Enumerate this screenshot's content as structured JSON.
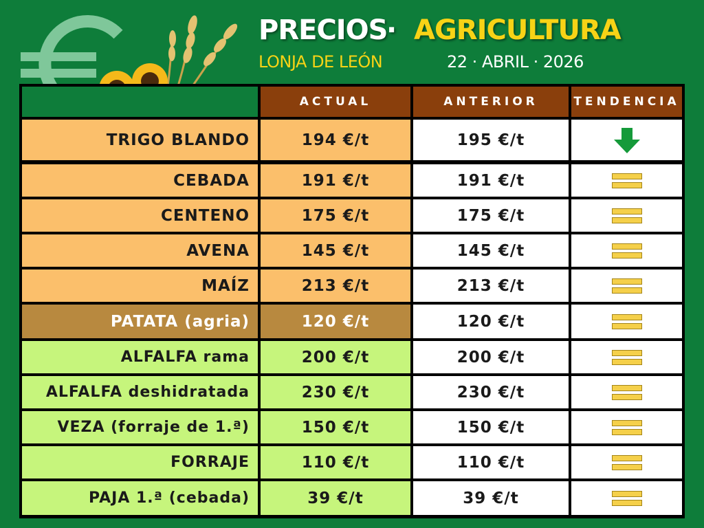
{
  "header": {
    "title_left": "PRECIOS",
    "title_separator": "·",
    "title_right": "AGRICULTURA",
    "subtitle_left": "LONJA DE LEÓN",
    "date": "22 · ABRIL · 2026",
    "euro_icon": "euro-icon",
    "decoration_icon": "sunflowers-wheat-icon"
  },
  "table": {
    "columns": [
      "ACTUAL",
      "ANTERIOR",
      "TENDENCIA"
    ],
    "rows": [
      {
        "name": "TRIGO BLANDO",
        "actual": "194 €/t",
        "anterior": "195 €/t",
        "trend": "down",
        "category": "cereal"
      },
      {
        "name": "CEBADA",
        "actual": "191 €/t",
        "anterior": "191 €/t",
        "trend": "equal",
        "category": "cereal"
      },
      {
        "name": "CENTENO",
        "actual": "175 €/t",
        "anterior": "175 €/t",
        "trend": "equal",
        "category": "cereal"
      },
      {
        "name": "AVENA",
        "actual": "145 €/t",
        "anterior": "145 €/t",
        "trend": "equal",
        "category": "cereal"
      },
      {
        "name": "MAÍZ",
        "actual": "213 €/t",
        "anterior": "213 €/t",
        "trend": "equal",
        "category": "cereal"
      },
      {
        "name": "PATATA (agria)",
        "actual": "120 €/t",
        "anterior": "120 €/t",
        "trend": "equal",
        "category": "tuber"
      },
      {
        "name": "ALFALFA rama",
        "actual": "200 €/t",
        "anterior": "200 €/t",
        "trend": "equal",
        "category": "forage"
      },
      {
        "name": "ALFALFA deshidratada",
        "actual": "230 €/t",
        "anterior": "230 €/t",
        "trend": "equal",
        "category": "forage"
      },
      {
        "name": "VEZA (forraje de 1.ª)",
        "actual": "150 €/t",
        "anterior": "150 €/t",
        "trend": "equal",
        "category": "forage"
      },
      {
        "name": "FORRAJE",
        "actual": "110 €/t",
        "anterior": "110 €/t",
        "trend": "equal",
        "category": "forage"
      },
      {
        "name": "PAJA 1.ª (cebada)",
        "actual": "39 €/t",
        "anterior": "39 €/t",
        "trend": "equal",
        "category": "forage"
      }
    ]
  },
  "colors": {
    "background": "#0e7d3a",
    "header_cell": "#8a3f0c",
    "cereal": "#fbbf6b",
    "tuber": "#b8893f",
    "forage": "#c6f57c",
    "trend_down": "#159a3a",
    "trend_equal": "#f5d04a",
    "title_accent": "#f7d316"
  }
}
